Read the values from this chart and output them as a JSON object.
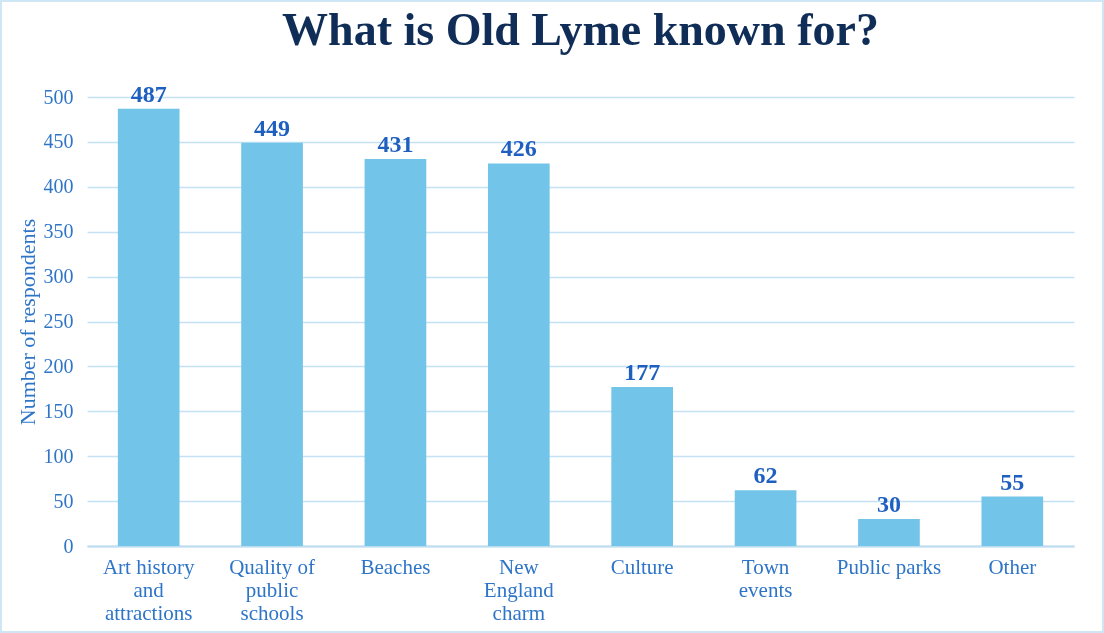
{
  "chart_data": {
    "type": "bar",
    "title": "What is Old Lyme known for?",
    "ylabel": "Number of respondents",
    "categories": [
      "Art history and attractions",
      "Quality of public schools",
      "Beaches",
      "New England charm",
      "Culture",
      "Town events",
      "Public parks",
      "Other"
    ],
    "values": [
      487,
      449,
      431,
      426,
      177,
      62,
      30,
      55
    ],
    "color": "#72c5e8",
    "ylim": [
      0,
      500
    ],
    "yticks": [
      0,
      50,
      100,
      150,
      200,
      250,
      300,
      350,
      400,
      450,
      500
    ],
    "grid": "y",
    "data_labels": true
  }
}
